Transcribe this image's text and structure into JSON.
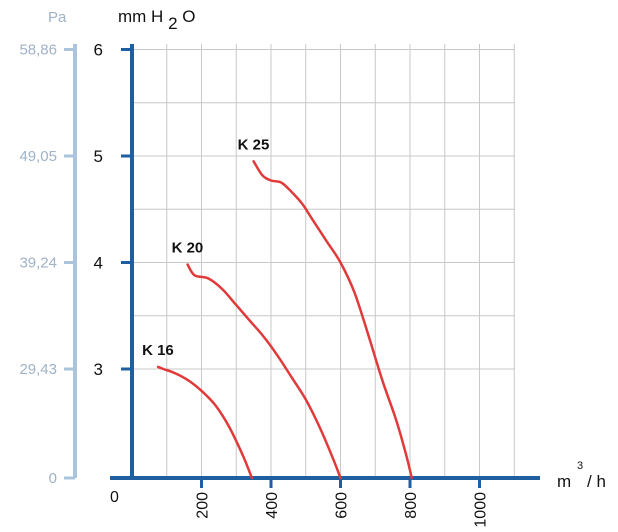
{
  "chart_data": {
    "type": "line",
    "pa_axis": {
      "label": "Pa",
      "ticks": [
        {
          "label": "0",
          "mm": 0
        },
        {
          "label": "29,43",
          "mm": 3
        },
        {
          "label": "39,24",
          "mm": 4
        },
        {
          "label": "49,05",
          "mm": 5
        },
        {
          "label": "58,86",
          "mm": 6
        }
      ]
    },
    "y_axis": {
      "label_main": "mm H",
      "label_sub": "2",
      "label_end": "O",
      "ticks": [
        {
          "label": "3",
          "value": 3
        },
        {
          "label": "4",
          "value": 4
        },
        {
          "label": "5",
          "value": 5
        },
        {
          "label": "6",
          "value": 6
        }
      ]
    },
    "x_axis": {
      "origin_label": "0",
      "unit_main": "m",
      "unit_sup": "3",
      "unit_end": "/ h",
      "ticks": [
        {
          "label": "200",
          "value": 200
        },
        {
          "label": "400",
          "value": 400
        },
        {
          "label": "600",
          "value": 600
        },
        {
          "label": "800",
          "value": 800
        },
        {
          "label": "1000",
          "value": 1000
        }
      ]
    },
    "grid": true,
    "series": [
      {
        "name": "K 16",
        "color": "#e03a3a",
        "points": [
          [
            75,
            3.02
          ],
          [
            90,
            3.0
          ],
          [
            120,
            2.95
          ],
          [
            160,
            2.85
          ],
          [
            200,
            2.7
          ],
          [
            240,
            2.5
          ],
          [
            280,
            2.2
          ],
          [
            320,
            1.8
          ],
          [
            345,
            1.5
          ]
        ]
      },
      {
        "name": "K 20",
        "color": "#e03a3a",
        "points": [
          [
            160,
            3.98
          ],
          [
            180,
            3.88
          ],
          [
            220,
            3.85
          ],
          [
            260,
            3.75
          ],
          [
            300,
            3.6
          ],
          [
            340,
            3.45
          ],
          [
            380,
            3.3
          ],
          [
            420,
            3.12
          ],
          [
            460,
            2.88
          ],
          [
            500,
            2.58
          ],
          [
            540,
            2.2
          ],
          [
            580,
            1.75
          ],
          [
            600,
            1.5
          ]
        ]
      },
      {
        "name": "K 25",
        "color": "#e03a3a",
        "points": [
          [
            350,
            4.95
          ],
          [
            375,
            4.82
          ],
          [
            400,
            4.77
          ],
          [
            430,
            4.75
          ],
          [
            460,
            4.66
          ],
          [
            490,
            4.55
          ],
          [
            520,
            4.4
          ],
          [
            560,
            4.2
          ],
          [
            600,
            4.0
          ],
          [
            640,
            3.72
          ],
          [
            680,
            3.32
          ],
          [
            720,
            2.85
          ],
          [
            760,
            2.3
          ],
          [
            790,
            1.8
          ],
          [
            805,
            1.5
          ]
        ]
      }
    ]
  }
}
